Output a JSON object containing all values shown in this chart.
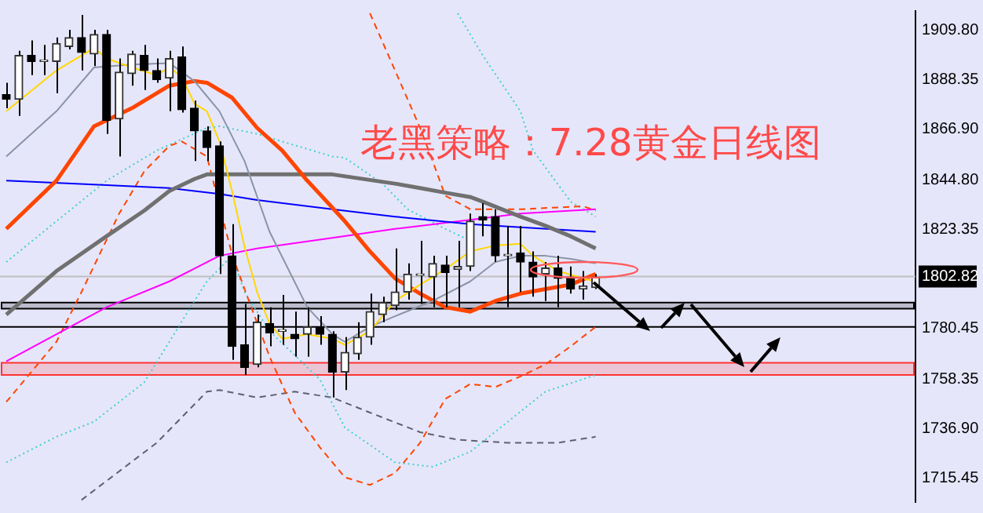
{
  "chart_data": {
    "type": "candlestick",
    "title": "老黑策略：7.28黄金日线图",
    "categories": [
      null,
      null,
      null,
      null,
      null,
      null,
      null,
      null,
      null,
      null,
      null,
      null,
      null,
      null,
      null,
      null,
      null,
      null,
      null,
      null,
      null,
      null,
      null,
      null,
      null,
      null,
      null,
      null,
      null,
      null,
      null,
      null,
      null,
      null,
      null,
      null,
      null,
      null,
      null,
      null,
      null,
      null,
      null,
      null,
      null,
      null,
      null,
      null,
      null,
      null,
      null,
      null,
      null,
      null,
      null,
      null,
      null,
      null,
      null,
      null,
      null,
      null,
      null,
      null,
      null,
      null,
      null,
      null,
      null,
      null,
      null,
      null,
      null
    ],
    "ohlc": [
      [
        1881.7,
        1886.9,
        1875.8,
        1879.7
      ],
      [
        1879.7,
        1900.7,
        1872.5,
        1898.7
      ],
      [
        1898.7,
        1905.2,
        1890.2,
        1896.1
      ],
      [
        1896.1,
        1903.3,
        1890.2,
        1896.1
      ],
      [
        1896.1,
        1906.5,
        1882.4,
        1903.9
      ],
      [
        1902.6,
        1909.8,
        1901.3,
        1906.5
      ],
      [
        1906.5,
        1916.3,
        1892.2,
        1900.0
      ],
      [
        1899.3,
        1909.8,
        1894.1,
        1907.8
      ],
      [
        1907.8,
        1909.8,
        1864.7,
        1870.6
      ],
      [
        1871.2,
        1897.4,
        1854.9,
        1891.5
      ],
      [
        1890.8,
        1900.7,
        1885.6,
        1899.3
      ],
      [
        1898.7,
        1903.3,
        1883.7,
        1892.2
      ],
      [
        1892.2,
        1897.4,
        1886.9,
        1888.2
      ],
      [
        1888.9,
        1900.7,
        1874.5,
        1897.4
      ],
      [
        1898.0,
        1902.6,
        1873.9,
        1875.2
      ],
      [
        1875.8,
        1879.1,
        1852.9,
        1866.0
      ],
      [
        1866.0,
        1868.0,
        1852.9,
        1858.8
      ],
      [
        1859.5,
        1861.4,
        1803.9,
        1811.8
      ],
      [
        1811.8,
        1825.5,
        1766.7,
        1772.5
      ],
      [
        1773.2,
        1790.9,
        1760.1,
        1763.4
      ],
      [
        1764.7,
        1786.3,
        1763.4,
        1783.0
      ],
      [
        1782.4,
        1789.5,
        1772.5,
        1778.4
      ],
      [
        1779.1,
        1794.8,
        1773.2,
        1779.1
      ],
      [
        1777.8,
        1787.6,
        1768.0,
        1775.8
      ],
      [
        1777.8,
        1789.5,
        1768.0,
        1781.0
      ],
      [
        1781.0,
        1785.6,
        1773.2,
        1777.8
      ],
      [
        1777.8,
        1779.1,
        1750.3,
        1761.4
      ],
      [
        1761.4,
        1776.5,
        1753.6,
        1769.9
      ],
      [
        1769.3,
        1783.0,
        1766.7,
        1776.5
      ],
      [
        1776.5,
        1795.4,
        1773.2,
        1787.6
      ],
      [
        1786.3,
        1794.1,
        1783.0,
        1791.5
      ],
      [
        1790.2,
        1815.0,
        1788.2,
        1796.1
      ],
      [
        1796.1,
        1808.5,
        1792.8,
        1803.9
      ],
      [
        1803.3,
        1818.3,
        1790.9,
        1803.3
      ],
      [
        1802.6,
        1811.8,
        1789.5,
        1808.5
      ],
      [
        1807.8,
        1811.8,
        1789.5,
        1804.6
      ],
      [
        1805.9,
        1818.3,
        1789.5,
        1807.2
      ],
      [
        1807.2,
        1830.1,
        1805.2,
        1826.8
      ],
      [
        1828.8,
        1834.6,
        1820.3,
        1827.4
      ],
      [
        1828.8,
        1832.0,
        1809.1,
        1811.8
      ],
      [
        1811.8,
        1824.8,
        1789.5,
        1811.8
      ],
      [
        1813.1,
        1824.8,
        1796.1,
        1809.1
      ],
      [
        1809.1,
        1813.7,
        1794.1,
        1802.6
      ],
      [
        1803.9,
        1809.1,
        1792.2,
        1806.5
      ],
      [
        1806.5,
        1811.8,
        1789.5,
        1802.0
      ],
      [
        1802.6,
        1807.2,
        1795.4,
        1797.4
      ],
      [
        1797.4,
        1805.2,
        1792.8,
        1798.7
      ],
      [
        1798.0,
        1803.9,
        1797.4,
        1802.6
      ],
      null,
      null,
      null,
      null,
      null,
      null,
      null,
      null,
      null,
      null,
      null,
      null,
      null,
      null,
      null,
      null,
      null,
      null,
      null,
      null,
      null,
      null,
      null,
      null,
      null
    ],
    "series": [
      {
        "type": "line",
        "color": "#ffd700",
        "line_style": "solid",
        "values": [
          1874.5,
          null,
          null,
          null,
          1892.2,
          null,
          null,
          1902.0,
          1897.4,
          null,
          1893.5,
          null,
          1890.2,
          1893.5,
          1889.5,
          1877.8,
          1874.5,
          1861.4,
          1839.9,
          1815.7,
          1796.1,
          1782.4,
          1775.8,
          null,
          1777.8,
          null,
          1775.8,
          1773.2,
          null,
          1779.1,
          null,
          1792.2,
          null,
          1799.3,
          null,
          1805.9,
          null,
          1813.7,
          null,
          1816.3,
          null,
          1817.0,
          1811.8,
          null,
          1805.2,
          null,
          1802.0,
          1800.7,
          null,
          null,
          null,
          null,
          null,
          null,
          null,
          null,
          null,
          null,
          null,
          null,
          null,
          null,
          null,
          null,
          null,
          null,
          null,
          null,
          null,
          null,
          null,
          null,
          null
        ]
      },
      {
        "type": "line",
        "color": "#8a94a6",
        "line_style": "solid",
        "values": [
          1854.9,
          null,
          null,
          null,
          1874.5,
          null,
          null,
          1893.5,
          null,
          null,
          1894.8,
          null,
          null,
          1895.4,
          null,
          1887.6,
          null,
          1874.5,
          null,
          1852.9,
          null,
          1822.2,
          null,
          null,
          1789.5,
          null,
          1777.8,
          1774.5,
          null,
          1781.0,
          null,
          1785.6,
          null,
          null,
          1792.2,
          null,
          null,
          1800.7,
          null,
          1809.1,
          null,
          1811.8,
          null,
          1811.8,
          null,
          1810.5,
          null,
          1808.5,
          null,
          null,
          null,
          null,
          null,
          null,
          null,
          null,
          null,
          null,
          null,
          null,
          null,
          null,
          null,
          null,
          null,
          null,
          null,
          null,
          null,
          null,
          null,
          null,
          null
        ]
      },
      {
        "type": "line",
        "color": "#ff4500",
        "line_style": "solid",
        "values": [
          1823.5,
          null,
          null,
          null,
          1844.4,
          null,
          null,
          1868.0,
          null,
          null,
          1875.8,
          null,
          null,
          1885.6,
          null,
          1887.6,
          1886.9,
          null,
          1880.4,
          null,
          1867.3,
          null,
          1857.5,
          null,
          1844.4,
          1838.6,
          null,
          1826.8,
          null,
          1813.7,
          null,
          1802.0,
          null,
          1795.4,
          null,
          1789.5,
          null,
          1787.6,
          null,
          1792.2,
          null,
          1795.4,
          null,
          1797.4,
          null,
          1799.3,
          null,
          1803.9,
          null,
          null,
          null,
          null,
          null,
          null,
          null,
          null,
          null,
          null,
          null,
          null,
          null,
          null,
          null,
          null,
          null,
          null,
          null,
          null,
          null,
          null,
          null,
          null,
          null
        ]
      },
      {
        "type": "line",
        "color": "#707070",
        "line_style": "solid",
        "values": [
          1786.3,
          null,
          null,
          null,
          1805.2,
          null,
          null,
          null,
          1820.3,
          null,
          null,
          1831.4,
          null,
          1839.9,
          null,
          1845.1,
          1847.1,
          null,
          null,
          null,
          1847.1,
          null,
          null,
          null,
          null,
          null,
          1847.1,
          null,
          null,
          null,
          null,
          1843.1,
          null,
          1841.2,
          null,
          1839.2,
          null,
          1837.3,
          1835.3,
          null,
          null,
          1828.8,
          null,
          1824.8,
          null,
          1820.3,
          null,
          1815.0,
          null,
          null,
          null,
          null,
          null,
          null,
          null,
          null,
          null,
          null,
          null,
          null,
          null,
          null,
          null,
          null,
          null,
          null,
          null,
          null,
          null,
          null,
          null,
          null,
          null
        ]
      },
      {
        "type": "line",
        "color": "#0000ff",
        "line_style": "solid",
        "values": [
          1844.4,
          null,
          null,
          null,
          null,
          null,
          null,
          null,
          1842.5,
          null,
          null,
          null,
          null,
          1841.2,
          null,
          null,
          null,
          1838.6,
          null,
          null,
          1836.0,
          null,
          null,
          null,
          null,
          null,
          1832.0,
          null,
          null,
          null,
          null,
          1828.8,
          null,
          null,
          null,
          null,
          null,
          1825.5,
          null,
          null,
          null,
          1824.2,
          null,
          null,
          null,
          null,
          null,
          1822.2,
          null,
          null,
          null,
          null,
          null,
          null,
          null,
          null,
          null,
          null,
          null,
          null,
          null,
          null,
          null,
          null,
          null,
          null,
          null,
          null,
          null,
          null,
          null,
          null,
          null
        ]
      },
      {
        "type": "line",
        "color": "#ff00ff",
        "line_style": "solid",
        "values": [
          1766.0,
          null,
          null,
          null,
          null,
          null,
          null,
          null,
          1789.5,
          null,
          null,
          null,
          null,
          1800.7,
          null,
          null,
          null,
          1811.8,
          null,
          null,
          1815.0,
          null,
          null,
          null,
          null,
          null,
          1819.6,
          null,
          null,
          null,
          null,
          1823.5,
          null,
          null,
          null,
          null,
          null,
          1827.4,
          null,
          null,
          null,
          1830.1,
          null,
          null,
          null,
          null,
          null,
          1832.0,
          null,
          null,
          null,
          null,
          null,
          null,
          null,
          null,
          null,
          null,
          null,
          null,
          null,
          null,
          null,
          null,
          null,
          null,
          null,
          null,
          null,
          null,
          null,
          null,
          null
        ]
      },
      {
        "type": "line",
        "color": "#ff4500",
        "line_style": "dashed",
        "values": [
          1748.4,
          null,
          null,
          null,
          1774.5,
          null,
          1796.1,
          null,
          null,
          1830.1,
          null,
          1848.4,
          null,
          1859.5,
          1861.4,
          null,
          1854.9,
          null,
          1812.4,
          1797.4,
          null,
          1768.0,
          null,
          1743.8,
          null,
          1728.8,
          null,
          1715.7,
          null,
          1712.4,
          null,
          1717.6,
          null,
          1730.7,
          null,
          1749.7,
          null,
          1756.2,
          null,
          1754.9,
          null,
          1759.5,
          null,
          1764.7,
          null,
          1772.5,
          null,
          1781.0,
          null,
          null,
          null,
          null,
          null,
          null,
          null,
          null,
          null,
          null,
          null,
          null,
          null,
          null,
          null,
          null,
          null,
          null,
          null,
          null,
          null,
          null,
          null,
          null,
          null
        ]
      },
      {
        "type": "line",
        "color": "#ff4500",
        "line_style": "dashed",
        "values": [
          null,
          null,
          null,
          null,
          null,
          null,
          null,
          null,
          null,
          null,
          null,
          null,
          null,
          null,
          null,
          null,
          null,
          null,
          null,
          null,
          null,
          null,
          null,
          null,
          null,
          null,
          null,
          null,
          null,
          1917.0,
          null,
          1892.2,
          null,
          1867.3,
          1852.9,
          1837.9,
          null,
          1832.0,
          null,
          null,
          null,
          1832.0,
          null,
          null,
          null,
          null,
          1833.3,
          1831.4,
          null,
          null,
          null,
          null,
          null,
          null,
          null,
          null,
          null,
          null,
          null,
          null,
          null,
          null,
          null,
          null,
          null,
          null,
          null,
          null,
          null,
          null,
          null,
          null,
          null
        ]
      },
      {
        "type": "line",
        "color": "#40d0d0",
        "line_style": "dotted",
        "values": [
          1722.2,
          null,
          null,
          null,
          1733.3,
          null,
          null,
          1739.9,
          null,
          null,
          null,
          1756.9,
          null,
          1774.5,
          null,
          1792.2,
          1800.7,
          null,
          1811.8,
          1796.1,
          null,
          1779.1,
          null,
          null,
          null,
          1758.2,
          null,
          1737.3,
          null,
          null,
          null,
          1722.2,
          null,
          null,
          1720.3,
          null,
          null,
          1726.8,
          null,
          null,
          1739.9,
          null,
          null,
          1752.9,
          null,
          null,
          null,
          1760.1,
          null,
          null,
          null,
          null,
          null,
          null,
          null,
          null,
          null,
          null,
          null,
          null,
          null,
          null,
          null,
          null,
          null,
          null,
          null,
          null,
          null,
          null,
          null,
          null,
          null
        ]
      },
      {
        "type": "line",
        "color": "#40d0d0",
        "line_style": "dotted",
        "values": [
          1809.1,
          null,
          null,
          null,
          1826.8,
          null,
          null,
          null,
          1844.4,
          null,
          null,
          null,
          1857.5,
          null,
          null,
          null,
          1867.3,
          1868.0,
          null,
          null,
          1864.7,
          null,
          1861.4,
          null,
          null,
          null,
          1854.9,
          1854.3,
          null,
          null,
          1843.1,
          null,
          1832.0,
          null,
          null,
          1823.5,
          null,
          1818.3,
          null,
          null,
          null,
          null,
          null,
          null,
          null,
          null,
          null,
          null,
          null,
          null,
          null,
          null,
          null,
          null,
          null,
          null,
          null,
          null,
          null,
          null,
          null,
          null,
          null,
          null,
          null,
          null,
          null,
          null,
          null,
          null,
          null,
          null,
          null
        ]
      },
      {
        "type": "line",
        "color": "#40d0d0",
        "line_style": "dotted",
        "values": [
          null,
          null,
          null,
          null,
          null,
          null,
          null,
          null,
          null,
          null,
          null,
          null,
          null,
          null,
          null,
          null,
          null,
          null,
          null,
          null,
          null,
          null,
          null,
          null,
          null,
          null,
          null,
          null,
          null,
          null,
          null,
          null,
          null,
          null,
          null,
          null,
          1917.0,
          null,
          1898.7,
          null,
          null,
          1874.5,
          1857.5,
          null,
          null,
          1835.3,
          null,
          1828.8,
          null,
          null,
          null,
          null,
          null,
          null,
          null,
          null,
          null,
          null,
          null,
          null,
          null,
          null,
          null,
          null,
          null,
          null,
          null,
          null,
          null,
          null,
          null,
          null,
          null
        ]
      },
      {
        "type": "line",
        "color": "#606070",
        "line_style": "dashed",
        "values": [
          null,
          null,
          null,
          null,
          null,
          null,
          1705.9,
          null,
          null,
          null,
          null,
          null,
          1730.7,
          null,
          null,
          null,
          1752.9,
          1753.6,
          null,
          null,
          1750.3,
          null,
          null,
          1752.9,
          null,
          null,
          1750.3,
          null,
          null,
          1743.8,
          null,
          null,
          null,
          1735.3,
          null,
          null,
          1732.0,
          null,
          null,
          null,
          1730.7,
          null,
          null,
          null,
          1730.7,
          null,
          null,
          1733.3,
          null,
          null,
          null,
          null,
          null,
          null,
          null,
          null,
          null,
          null,
          null,
          null,
          null,
          null,
          null,
          null,
          null,
          null,
          null,
          null,
          null,
          null,
          null,
          null,
          null
        ]
      }
    ],
    "ylim": [
      1705,
      1918
    ],
    "yticks": [
      {
        "value": 1909.8,
        "label": "1909.80"
      },
      {
        "value": 1888.35,
        "label": "1888.35"
      },
      {
        "value": 1866.9,
        "label": "1866.90"
      },
      {
        "value": 1844.8,
        "label": "1844.80"
      },
      {
        "value": 1823.35,
        "label": "1823.35"
      },
      {
        "value": 1780.45,
        "label": "1780.45"
      },
      {
        "value": 1758.35,
        "label": "1758.35"
      },
      {
        "value": 1736.9,
        "label": "1736.90"
      },
      {
        "value": 1715.45,
        "label": "1715.45"
      }
    ],
    "tick_labels": "y",
    "ref_lines": [
      {
        "axis": "y",
        "value": 1802.82,
        "label": "1802.82",
        "color": "#c0c0c0"
      },
      {
        "axis": "y",
        "value": 1781.0,
        "color": "#000000"
      }
    ],
    "bands": [
      {
        "axis": "y",
        "from": 1788.9,
        "to": 1791.5,
        "color": "#000000"
      },
      {
        "axis": "y",
        "from": 1760.1,
        "to": 1765.4,
        "color": "#ff3333"
      }
    ]
  }
}
